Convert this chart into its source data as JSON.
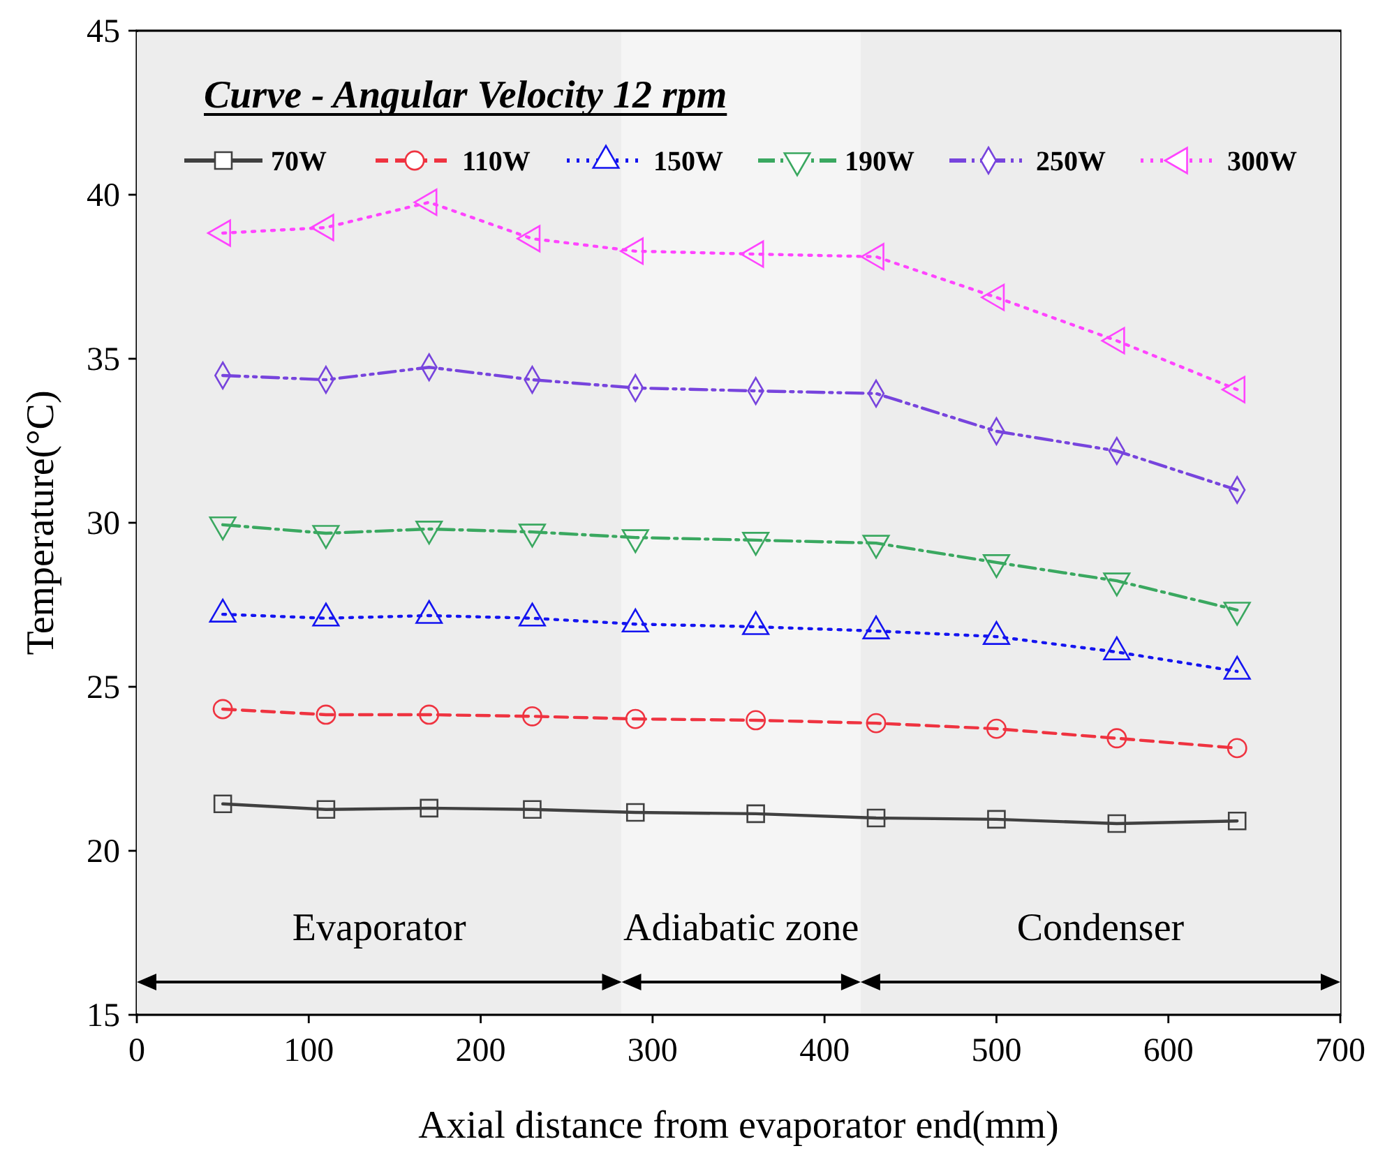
{
  "chart_data": {
    "type": "line",
    "title": "Curve - Angular Velocity 12 rpm",
    "xlabel": "Axial distance from evaporator end(mm)",
    "ylabel": "Temperature(°C)",
    "x": [
      50,
      110,
      170,
      230,
      290,
      360,
      430,
      500,
      570,
      640
    ],
    "xlim": [
      0,
      700
    ],
    "xticks": [
      0,
      100,
      200,
      300,
      400,
      500,
      600,
      700
    ],
    "ylim": [
      15,
      45
    ],
    "yticks": [
      15,
      20,
      25,
      30,
      35,
      40,
      45
    ],
    "grid": false,
    "legend": "top",
    "series": [
      {
        "name": "70W",
        "color": "#404040",
        "marker": "square",
        "line_style": "solid",
        "values": [
          21.43,
          21.26,
          21.3,
          21.26,
          21.17,
          21.13,
          21.0,
          20.96,
          20.83,
          20.91
        ]
      },
      {
        "name": "110W",
        "color": "#ef3340",
        "marker": "circle",
        "line_style": "dashed",
        "values": [
          24.32,
          24.15,
          24.15,
          24.1,
          24.02,
          23.98,
          23.89,
          23.72,
          23.43,
          23.13
        ]
      },
      {
        "name": "150W",
        "color": "#1414f0",
        "marker": "triangle",
        "line_style": "dotted",
        "values": [
          27.21,
          27.09,
          27.17,
          27.09,
          26.91,
          26.83,
          26.7,
          26.53,
          26.06,
          25.47
        ]
      },
      {
        "name": "190W",
        "color": "#3aa860",
        "marker": "triangle-down",
        "line_style": "dashdot",
        "values": [
          29.94,
          29.68,
          29.81,
          29.72,
          29.55,
          29.47,
          29.38,
          28.79,
          28.23,
          27.34
        ]
      },
      {
        "name": "250W",
        "color": "#7744dd",
        "marker": "diamond",
        "line_style": "dashdotdot",
        "values": [
          34.49,
          34.36,
          34.74,
          34.36,
          34.11,
          34.02,
          33.94,
          32.79,
          32.19,
          31.0
        ]
      },
      {
        "name": "300W",
        "color": "#ff44ff",
        "marker": "triangle-left",
        "line_style": "dotted",
        "values": [
          38.83,
          39.0,
          39.77,
          38.66,
          38.28,
          38.19,
          38.11,
          36.87,
          35.55,
          34.06
        ]
      }
    ],
    "bands": [
      {
        "axis": "x",
        "from": 0,
        "to": 282,
        "label": "Evaporator",
        "color": "#ededed"
      },
      {
        "axis": "x",
        "from": 282,
        "to": 421,
        "label": "Adiabatic zone",
        "color": "#f5f5f5"
      },
      {
        "axis": "x",
        "from": 421,
        "to": 700,
        "label": "Condenser",
        "color": "#ededed"
      }
    ]
  }
}
